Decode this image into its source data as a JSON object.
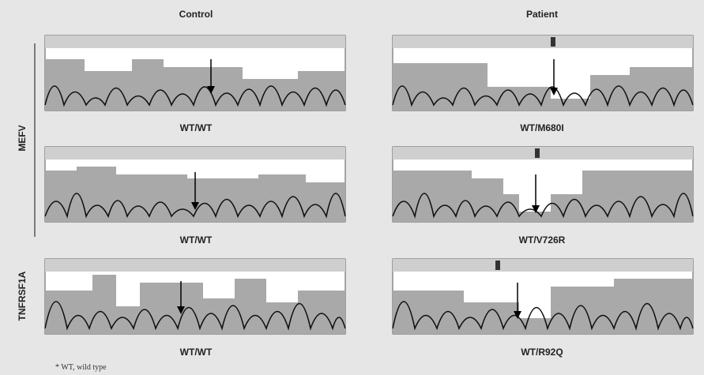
{
  "columns": [
    "Control",
    "Patient"
  ],
  "genes": [
    "MEFV",
    "TNFRSF1A"
  ],
  "panels": [
    {
      "label": "WT/WT"
    },
    {
      "label": "WT/M680I"
    },
    {
      "label": "WT/WT"
    },
    {
      "label": "WT/V726R"
    },
    {
      "label": "WT/WT"
    },
    {
      "label": "WT/R92Q"
    }
  ],
  "footnote": "* WT, wild type"
}
